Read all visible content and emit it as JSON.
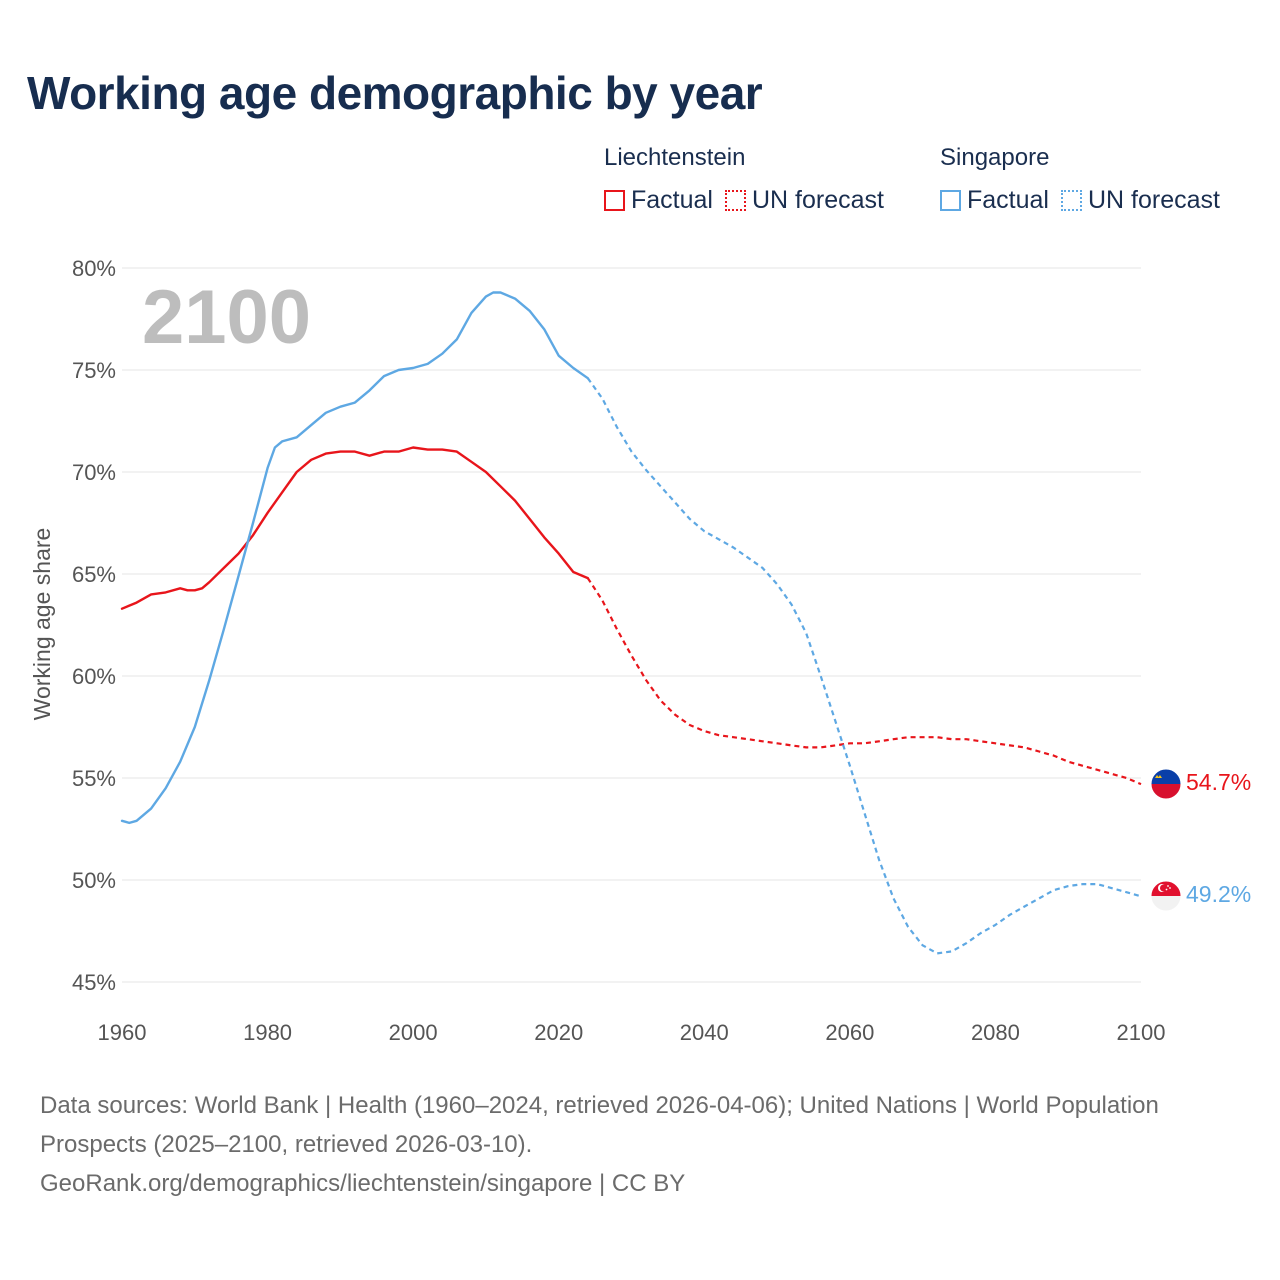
{
  "header": {
    "title": "Working age demographic by year"
  },
  "legend": {
    "groups": [
      {
        "name": "Liechtenstein",
        "factual_label": "Factual",
        "forecast_label": "UN forecast",
        "color": "#e8151b"
      },
      {
        "name": "Singapore",
        "factual_label": "Factual",
        "forecast_label": "UN forecast",
        "color": "#5ea8e3"
      }
    ]
  },
  "chart_data": {
    "type": "line",
    "title": "Working age demographic by year",
    "ylabel": "Working age share",
    "xlabel": "",
    "xlim": [
      1960,
      2100
    ],
    "ylim": [
      45,
      80
    ],
    "x_ticks": [
      "1960",
      "1980",
      "2000",
      "2020",
      "2040",
      "2060",
      "2080",
      "2100"
    ],
    "y_ticks": [
      "45%",
      "50%",
      "55%",
      "60%",
      "65%",
      "70%",
      "75%",
      "80%"
    ],
    "annotation_year": "2100",
    "forecast_start": 2024,
    "series": [
      {
        "name": "Liechtenstein",
        "color": "#e8151b",
        "end_label": "54.7%",
        "points": [
          [
            1960,
            63.3
          ],
          [
            1962,
            63.6
          ],
          [
            1964,
            64.0
          ],
          [
            1966,
            64.1
          ],
          [
            1968,
            64.3
          ],
          [
            1969,
            64.2
          ],
          [
            1970,
            64.2
          ],
          [
            1971,
            64.3
          ],
          [
            1972,
            64.6
          ],
          [
            1974,
            65.3
          ],
          [
            1976,
            66.0
          ],
          [
            1978,
            66.9
          ],
          [
            1980,
            68.0
          ],
          [
            1982,
            69.0
          ],
          [
            1984,
            70.0
          ],
          [
            1986,
            70.6
          ],
          [
            1988,
            70.9
          ],
          [
            1990,
            71.0
          ],
          [
            1992,
            71.0
          ],
          [
            1994,
            70.8
          ],
          [
            1996,
            71.0
          ],
          [
            1998,
            71.0
          ],
          [
            2000,
            71.2
          ],
          [
            2002,
            71.1
          ],
          [
            2004,
            71.1
          ],
          [
            2006,
            71.0
          ],
          [
            2008,
            70.5
          ],
          [
            2010,
            70.0
          ],
          [
            2012,
            69.3
          ],
          [
            2014,
            68.6
          ],
          [
            2016,
            67.7
          ],
          [
            2018,
            66.8
          ],
          [
            2020,
            66.0
          ],
          [
            2022,
            65.1
          ],
          [
            2024,
            64.8
          ],
          [
            2026,
            63.7
          ],
          [
            2028,
            62.3
          ],
          [
            2030,
            61.0
          ],
          [
            2032,
            59.8
          ],
          [
            2034,
            58.8
          ],
          [
            2036,
            58.1
          ],
          [
            2038,
            57.6
          ],
          [
            2040,
            57.3
          ],
          [
            2042,
            57.1
          ],
          [
            2044,
            57.0
          ],
          [
            2046,
            56.9
          ],
          [
            2048,
            56.8
          ],
          [
            2050,
            56.7
          ],
          [
            2052,
            56.6
          ],
          [
            2054,
            56.5
          ],
          [
            2056,
            56.5
          ],
          [
            2058,
            56.6
          ],
          [
            2060,
            56.7
          ],
          [
            2062,
            56.7
          ],
          [
            2064,
            56.8
          ],
          [
            2066,
            56.9
          ],
          [
            2068,
            57.0
          ],
          [
            2070,
            57.0
          ],
          [
            2072,
            57.0
          ],
          [
            2074,
            56.9
          ],
          [
            2076,
            56.9
          ],
          [
            2078,
            56.8
          ],
          [
            2080,
            56.7
          ],
          [
            2082,
            56.6
          ],
          [
            2084,
            56.5
          ],
          [
            2086,
            56.3
          ],
          [
            2088,
            56.1
          ],
          [
            2090,
            55.8
          ],
          [
            2092,
            55.6
          ],
          [
            2094,
            55.4
          ],
          [
            2096,
            55.2
          ],
          [
            2098,
            55.0
          ],
          [
            2100,
            54.7
          ]
        ]
      },
      {
        "name": "Singapore",
        "color": "#5ea8e3",
        "end_label": "49.2%",
        "points": [
          [
            1960,
            52.9
          ],
          [
            1961,
            52.8
          ],
          [
            1962,
            52.9
          ],
          [
            1964,
            53.5
          ],
          [
            1966,
            54.5
          ],
          [
            1968,
            55.8
          ],
          [
            1970,
            57.5
          ],
          [
            1972,
            59.8
          ],
          [
            1974,
            62.3
          ],
          [
            1976,
            64.9
          ],
          [
            1978,
            67.5
          ],
          [
            1980,
            70.2
          ],
          [
            1981,
            71.2
          ],
          [
            1982,
            71.5
          ],
          [
            1984,
            71.7
          ],
          [
            1986,
            72.3
          ],
          [
            1988,
            72.9
          ],
          [
            1990,
            73.2
          ],
          [
            1992,
            73.4
          ],
          [
            1994,
            74.0
          ],
          [
            1996,
            74.7
          ],
          [
            1998,
            75.0
          ],
          [
            2000,
            75.1
          ],
          [
            2002,
            75.3
          ],
          [
            2004,
            75.8
          ],
          [
            2006,
            76.5
          ],
          [
            2008,
            77.8
          ],
          [
            2010,
            78.6
          ],
          [
            2011,
            78.8
          ],
          [
            2012,
            78.8
          ],
          [
            2014,
            78.5
          ],
          [
            2016,
            77.9
          ],
          [
            2018,
            77.0
          ],
          [
            2020,
            75.7
          ],
          [
            2022,
            75.1
          ],
          [
            2024,
            74.6
          ],
          [
            2026,
            73.6
          ],
          [
            2028,
            72.2
          ],
          [
            2030,
            71.0
          ],
          [
            2032,
            70.1
          ],
          [
            2034,
            69.3
          ],
          [
            2036,
            68.5
          ],
          [
            2038,
            67.7
          ],
          [
            2040,
            67.1
          ],
          [
            2042,
            66.7
          ],
          [
            2044,
            66.3
          ],
          [
            2046,
            65.8
          ],
          [
            2048,
            65.3
          ],
          [
            2050,
            64.5
          ],
          [
            2052,
            63.5
          ],
          [
            2054,
            62.1
          ],
          [
            2056,
            60.0
          ],
          [
            2058,
            57.8
          ],
          [
            2060,
            55.6
          ],
          [
            2062,
            53.3
          ],
          [
            2064,
            51.0
          ],
          [
            2066,
            49.1
          ],
          [
            2068,
            47.7
          ],
          [
            2070,
            46.8
          ],
          [
            2072,
            46.4
          ],
          [
            2074,
            46.5
          ],
          [
            2076,
            46.9
          ],
          [
            2078,
            47.4
          ],
          [
            2080,
            47.8
          ],
          [
            2082,
            48.3
          ],
          [
            2084,
            48.7
          ],
          [
            2086,
            49.1
          ],
          [
            2088,
            49.5
          ],
          [
            2090,
            49.7
          ],
          [
            2092,
            49.8
          ],
          [
            2094,
            49.8
          ],
          [
            2096,
            49.6
          ],
          [
            2098,
            49.4
          ],
          [
            2100,
            49.2
          ]
        ]
      }
    ]
  },
  "footer": {
    "sources": "Data sources: World Bank | Health (1960–2024, retrieved 2026-04-06); United Nations | World Population Prospects (2025–2100, retrieved 2026-03-10).",
    "credit": "GeoRank.org/demographics/liechtenstein/singapore | CC BY"
  }
}
